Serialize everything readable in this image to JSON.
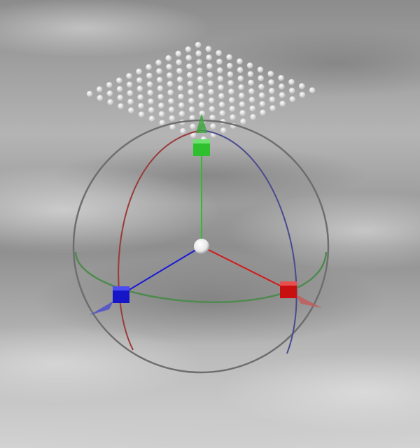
{
  "scene": {
    "background": "cloudy-gray-texture",
    "colors": {
      "x_axis": "#d11a1a",
      "y_axis": "#2bbf2b",
      "z_axis": "#1a1ad6",
      "ring_outer": "#6e6e6e",
      "ring_x": "#9a3a3a",
      "ring_z": "#4a4a8e",
      "ring_y": "#4e8a4e",
      "pivot": "#ffffff",
      "grid_points": "#f2f2f2"
    },
    "gizmo": {
      "handles": [
        "x-handle",
        "y-handle",
        "z-handle"
      ],
      "rings": [
        "outer-ring",
        "x-rotation-ring",
        "y-rotation-ring",
        "z-rotation-ring"
      ]
    },
    "point_grid": {
      "rows": 12,
      "columns": 12
    }
  }
}
